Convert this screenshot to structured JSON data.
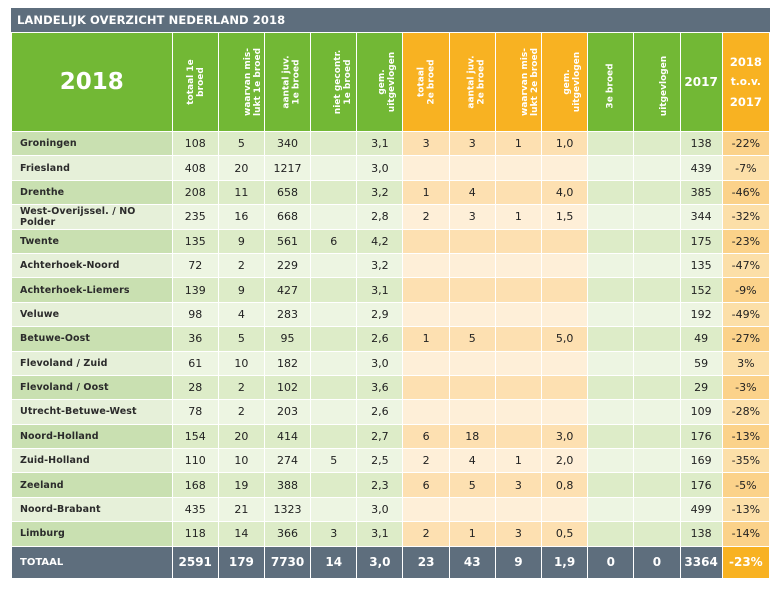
{
  "title": "LANDELIJK OVERZICHT NEDERLAND 2018",
  "year_label": "2018",
  "headers": {
    "totaal_1e": "totaal 1e|broed",
    "mislukt_1e": "waarvan mis-|lukt 1e broed",
    "aantal_1e": "aantal juv.|1e broed",
    "niet_gecontr_1e": "niet gecontr.|1e broed",
    "gem_1e": "gem.|uitgevlogen",
    "totaal_2e": "totaal|2e broed",
    "aantal_2e": "aantal juv.|2e broed",
    "mislukt_2e": "waarvan mis-|lukt 2e broed",
    "gem_2e": "gem.|uitgevlogen",
    "broed_3e": "3e broed",
    "uitgevlogen_3e": "uitgevlogen",
    "prev_year": "2017",
    "cmp_line1": "2018",
    "cmp_line2": "t.o.v.",
    "cmp_line3": "2017"
  },
  "rows": [
    {
      "name": "Groningen",
      "c": [
        "108",
        "5",
        "340",
        "",
        "3,1",
        "3",
        "3",
        "1",
        "1,0",
        "",
        "",
        "138",
        "-22%"
      ]
    },
    {
      "name": "Friesland",
      "c": [
        "408",
        "20",
        "1217",
        "",
        "3,0",
        "",
        "",
        "",
        "",
        "",
        "",
        "439",
        "-7%"
      ]
    },
    {
      "name": "Drenthe",
      "c": [
        "208",
        "11",
        "658",
        "",
        "3,2",
        "1",
        "4",
        "",
        "4,0",
        "",
        "",
        "385",
        "-46%"
      ]
    },
    {
      "name": "West-Overijssel. / NO Polder",
      "c": [
        "235",
        "16",
        "668",
        "",
        "2,8",
        "2",
        "3",
        "1",
        "1,5",
        "",
        "",
        "344",
        "-32%"
      ]
    },
    {
      "name": "Twente",
      "c": [
        "135",
        "9",
        "561",
        "6",
        "4,2",
        "",
        "",
        "",
        "",
        "",
        "",
        "175",
        "-23%"
      ]
    },
    {
      "name": "Achterhoek-Noord",
      "c": [
        "72",
        "2",
        "229",
        "",
        "3,2",
        "",
        "",
        "",
        "",
        "",
        "",
        "135",
        "-47%"
      ]
    },
    {
      "name": "Achterhoek-Liemers",
      "c": [
        "139",
        "9",
        "427",
        "",
        "3,1",
        "",
        "",
        "",
        "",
        "",
        "",
        "152",
        "-9%"
      ]
    },
    {
      "name": "Veluwe",
      "c": [
        "98",
        "4",
        "283",
        "",
        "2,9",
        "",
        "",
        "",
        "",
        "",
        "",
        "192",
        "-49%"
      ]
    },
    {
      "name": "Betuwe-Oost",
      "c": [
        "36",
        "5",
        "95",
        "",
        "2,6",
        "1",
        "5",
        "",
        "5,0",
        "",
        "",
        "49",
        "-27%"
      ]
    },
    {
      "name": "Flevoland / Zuid",
      "c": [
        "61",
        "10",
        "182",
        "",
        "3,0",
        "",
        "",
        "",
        "",
        "",
        "",
        "59",
        "3%"
      ]
    },
    {
      "name": "Flevoland / Oost",
      "c": [
        "28",
        "2",
        "102",
        "",
        "3,6",
        "",
        "",
        "",
        "",
        "",
        "",
        "29",
        "-3%"
      ]
    },
    {
      "name": "Utrecht-Betuwe-West",
      "c": [
        "78",
        "2",
        "203",
        "",
        "2,6",
        "",
        "",
        "",
        "",
        "",
        "",
        "109",
        "-28%"
      ]
    },
    {
      "name": "Noord-Holland",
      "c": [
        "154",
        "20",
        "414",
        "",
        "2,7",
        "6",
        "18",
        "",
        "3,0",
        "",
        "",
        "176",
        "-13%"
      ]
    },
    {
      "name": "Zuid-Holland",
      "c": [
        "110",
        "10",
        "274",
        "5",
        "2,5",
        "2",
        "4",
        "1",
        "2,0",
        "",
        "",
        "169",
        "-35%"
      ]
    },
    {
      "name": "Zeeland",
      "c": [
        "168",
        "19",
        "388",
        "",
        "2,3",
        "6",
        "5",
        "3",
        "0,8",
        "",
        "",
        "176",
        "-5%"
      ]
    },
    {
      "name": "Noord-Brabant",
      "c": [
        "435",
        "21",
        "1323",
        "",
        "3,0",
        "",
        "",
        "",
        "",
        "",
        "",
        "499",
        "-13%"
      ]
    },
    {
      "name": "Limburg",
      "c": [
        "118",
        "14",
        "366",
        "3",
        "3,1",
        "2",
        "1",
        "3",
        "0,5",
        "",
        "",
        "138",
        "-14%"
      ]
    }
  ],
  "total": {
    "name": "TOTAAL",
    "c": [
      "2591",
      "179",
      "7730",
      "14",
      "3,0",
      "23",
      "43",
      "9",
      "1,9",
      "0",
      "0",
      "3364",
      "-23%"
    ]
  }
}
